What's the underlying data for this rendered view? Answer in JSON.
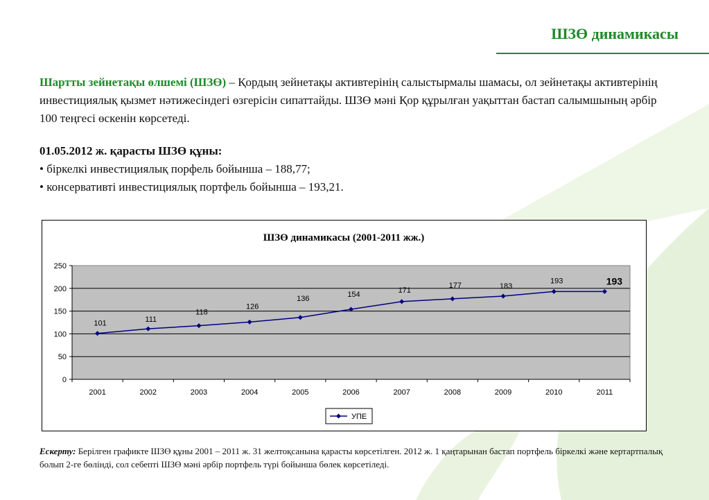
{
  "header": {
    "title": "ШЗӨ динамикасы"
  },
  "intro": {
    "term": "Шартты зейнетақы өлшемі (ШЗӨ)",
    "text": " – Қордың зейнетақы активтерінің салыстырмалы шамасы, ол зейнетақы активтерінің инвестициялық қызмет нәтижесіндегі өзгерісін сипаттайды. ШЗӨ мәні Қор құрылған уақыттан бастап салымшының әрбір 100 теңгесі өскенін көрсетеді."
  },
  "values": {
    "heading": "01.05.2012 ж. қарасты ШЗӨ құны:",
    "items": [
      "• біркелкі инвестициялық порфель бойынша – 188,77;",
      "• консервативті инвестициялық портфель бойынша – 193,21."
    ]
  },
  "note": {
    "label": "Ескерту:",
    "text": " Берілген графикте ШЗӨ құны 2001 – 2011 ж. 31 желтоқсанына қарасты көрсетілген. 2012 ж. 1 қаңтарынан бастап портфель біркелкі және кертартпалық болып 2-ге бөлінді, сол себепті ШЗӨ мәні әрбір портфель түрі бойынша бөлек көрсетіледі."
  },
  "colors": {
    "accent": "#1e8a2a",
    "series": "#000080",
    "plot_bg": "#c0c0c0"
  },
  "chart_data": {
    "type": "line",
    "title": "ШЗӨ динамикасы (2001-2011 жж.)",
    "xlabel": "",
    "ylabel": "",
    "categories": [
      "2001",
      "2002",
      "2003",
      "2004",
      "2005",
      "2006",
      "2007",
      "2008",
      "2009",
      "2010",
      "2011"
    ],
    "series": [
      {
        "name": "УПЕ",
        "values": [
          101,
          111,
          118,
          126,
          136,
          154,
          171,
          177,
          183,
          193,
          193
        ]
      }
    ],
    "data_labels": [
      "101",
      "111",
      "118",
      "126",
      "136",
      "154",
      "171",
      "177",
      "183",
      "193",
      "193"
    ],
    "ylim": [
      0,
      250
    ],
    "yticks": [
      0,
      50,
      100,
      150,
      200,
      250
    ],
    "grid": true,
    "legend": "bottom"
  }
}
